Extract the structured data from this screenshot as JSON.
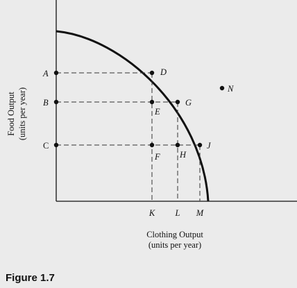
{
  "figure": {
    "caption": "Figure 1.7"
  },
  "chart_data": {
    "type": "scatter",
    "subtype": "production-possibility-frontier",
    "title": "",
    "xlabel": "Clothing Output",
    "xlabel_unit": "(units per year)",
    "ylabel": "Food Output",
    "ylabel_unit": "(units per year)",
    "curve": "concave-frontier",
    "grid": false,
    "y_ticks": [
      "A",
      "B",
      "C"
    ],
    "x_ticks": [
      "K",
      "L",
      "M"
    ],
    "points": [
      {
        "label": "D",
        "x": "K",
        "y": "A",
        "on_frontier": true
      },
      {
        "label": "G",
        "x": "L",
        "y": "B",
        "on_frontier": true
      },
      {
        "label": "J",
        "x": "M",
        "y": "C",
        "on_frontier": true
      },
      {
        "label": "E",
        "x": "K",
        "y": "B",
        "on_frontier": false
      },
      {
        "label": "F",
        "x": "K",
        "y": "C",
        "on_frontier": false
      },
      {
        "label": "H",
        "x": "L",
        "y": "C",
        "on_frontier": false
      },
      {
        "label": "N",
        "x": "beyond frontier",
        "y": "beyond frontier",
        "on_frontier": false
      }
    ]
  }
}
